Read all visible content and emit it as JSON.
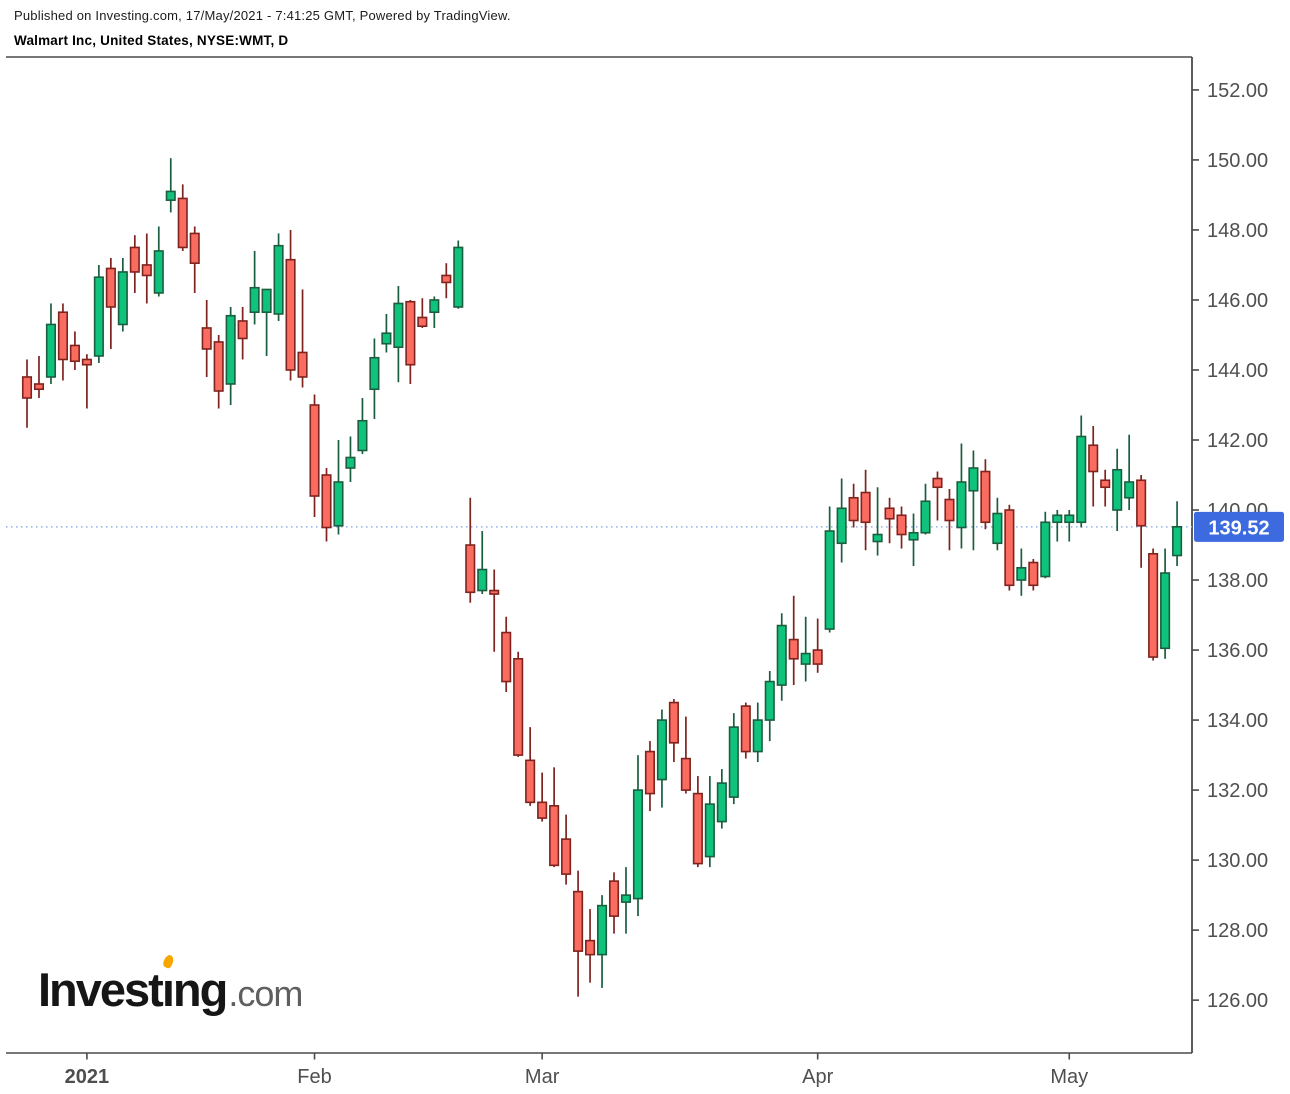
{
  "header": {
    "published_line": "Published on Investing.com, 17/May/2021 - 7:41:25 GMT, Powered by TradingView.",
    "instrument_line": "Walmart Inc, United States, NYSE:WMT, D"
  },
  "logo": {
    "part_invest": "Invest",
    "part_i": "ı",
    "part_ng": "ng",
    "part_suffix": ".com",
    "accent_color": "#f7a600"
  },
  "last_price_badge": {
    "label": "139.52",
    "color": "#3d6bdf",
    "text_color": "#ffffff"
  },
  "chart_data": {
    "type": "candlestick",
    "title": "Walmart Inc, United States, NYSE:WMT, D",
    "symbol": "NYSE:WMT",
    "timeframe": "D",
    "grid": false,
    "ylim": [
      124.49,
      152.94
    ],
    "last_price": 139.52,
    "price_ticks": [
      {
        "value": 152,
        "label": "152.00"
      },
      {
        "value": 150,
        "label": "150.00"
      },
      {
        "value": 148,
        "label": "148.00"
      },
      {
        "value": 146,
        "label": "146.00"
      },
      {
        "value": 144,
        "label": "144.00"
      },
      {
        "value": 142,
        "label": "142.00"
      },
      {
        "value": 140,
        "label": "140.00"
      },
      {
        "value": 138,
        "label": "138.00"
      },
      {
        "value": 136,
        "label": "136.00"
      },
      {
        "value": 134,
        "label": "134.00"
      },
      {
        "value": 132,
        "label": "132.00"
      },
      {
        "value": 130,
        "label": "130.00"
      },
      {
        "value": 128,
        "label": "128.00"
      },
      {
        "value": 126,
        "label": "126.00"
      }
    ],
    "x_ticks": [
      {
        "label": "2021",
        "candle_index": 5,
        "bold": true
      },
      {
        "label": "Feb",
        "candle_index": 24,
        "bold": false
      },
      {
        "label": "Mar",
        "candle_index": 43,
        "bold": false
      },
      {
        "label": "Apr",
        "candle_index": 66,
        "bold": false
      },
      {
        "label": "May",
        "candle_index": 87,
        "bold": false
      }
    ],
    "colors": {
      "up_fill": "#10c37c",
      "up_stroke": "#1b5e3f",
      "down_fill": "#fa6b60",
      "down_stroke": "#7e231e",
      "last_price_line": "#8fb0ea",
      "axis_text": "#4f4f4f",
      "axis_line": "#4a4a4a"
    },
    "columns": [
      "date",
      "open",
      "high",
      "low",
      "close"
    ],
    "candles": [
      [
        "24 Dec",
        143.8,
        144.3,
        142.35,
        143.2
      ],
      [
        "28 Dec",
        143.6,
        144.4,
        143.2,
        143.45
      ],
      [
        "29 Dec",
        143.8,
        145.9,
        143.6,
        145.3
      ],
      [
        "30 Dec",
        145.65,
        145.9,
        143.7,
        144.3
      ],
      [
        "31 Dec",
        144.7,
        145.1,
        144.0,
        144.25
      ],
      [
        "4 Jan",
        144.3,
        144.45,
        142.9,
        144.15
      ],
      [
        "5 Jan",
        144.4,
        147.0,
        144.2,
        146.65
      ],
      [
        "6 Jan",
        146.9,
        147.2,
        144.6,
        145.8
      ],
      [
        "7 Jan",
        145.3,
        147.2,
        145.1,
        146.8
      ],
      [
        "8 Jan",
        147.5,
        147.85,
        146.2,
        146.8
      ],
      [
        "11 Jan",
        147.0,
        147.9,
        145.9,
        146.7
      ],
      [
        "12 Jan",
        146.2,
        148.1,
        146.1,
        147.4
      ],
      [
        "13 Jan",
        148.85,
        150.05,
        148.5,
        149.1
      ],
      [
        "14 Jan",
        148.9,
        149.3,
        147.4,
        147.5
      ],
      [
        "15 Jan",
        147.9,
        148.1,
        146.2,
        147.05
      ],
      [
        "19 Jan",
        145.2,
        146.0,
        143.8,
        144.6
      ],
      [
        "20 Jan",
        144.8,
        145.0,
        142.9,
        143.4
      ],
      [
        "21 Jan",
        143.6,
        145.8,
        143.0,
        145.55
      ],
      [
        "22 Jan",
        145.4,
        145.8,
        144.3,
        144.9
      ],
      [
        "25 Jan",
        145.65,
        147.4,
        145.3,
        146.35
      ],
      [
        "26 Jan",
        145.65,
        146.3,
        144.4,
        146.3
      ],
      [
        "27 Jan",
        145.6,
        147.9,
        145.4,
        147.55
      ],
      [
        "28 Jan",
        147.15,
        148.0,
        143.7,
        144.0
      ],
      [
        "29 Jan",
        144.5,
        146.3,
        143.5,
        143.8
      ],
      [
        "1 Feb",
        143.0,
        143.3,
        139.8,
        140.4
      ],
      [
        "2 Feb",
        141.0,
        141.2,
        139.1,
        139.5
      ],
      [
        "3 Feb",
        139.55,
        142.0,
        139.3,
        140.8
      ],
      [
        "4 Feb",
        141.2,
        142.1,
        140.8,
        141.5
      ],
      [
        "5 Feb",
        141.7,
        143.2,
        141.6,
        142.55
      ],
      [
        "8 Feb",
        143.45,
        144.9,
        142.6,
        144.35
      ],
      [
        "9 Feb",
        144.75,
        145.6,
        144.5,
        145.05
      ],
      [
        "10 Feb",
        144.65,
        146.4,
        143.65,
        145.9
      ],
      [
        "11 Feb",
        145.95,
        146.0,
        143.6,
        144.15
      ],
      [
        "12 Feb",
        145.5,
        146.05,
        145.2,
        145.25
      ],
      [
        "16 Feb",
        145.65,
        146.1,
        145.2,
        146.0
      ],
      [
        "17 Feb",
        146.7,
        147.05,
        146.05,
        146.5
      ],
      [
        "18 Feb",
        145.8,
        147.7,
        145.75,
        147.5
      ],
      [
        "19 Feb",
        139.0,
        140.35,
        137.35,
        137.65
      ],
      [
        "22 Feb",
        137.7,
        139.4,
        137.6,
        138.3
      ],
      [
        "23 Feb",
        137.7,
        138.3,
        135.95,
        137.6
      ],
      [
        "24 Feb",
        136.5,
        136.95,
        134.8,
        135.1
      ],
      [
        "25 Feb",
        135.75,
        135.95,
        132.95,
        133.0
      ],
      [
        "26 Feb",
        132.85,
        133.8,
        131.55,
        131.65
      ],
      [
        "1 Mar",
        131.65,
        132.5,
        131.1,
        131.2
      ],
      [
        "2 Mar",
        131.55,
        132.65,
        129.8,
        129.85
      ],
      [
        "3 Mar",
        130.6,
        131.3,
        129.3,
        129.6
      ],
      [
        "4 Mar",
        129.1,
        129.7,
        126.1,
        127.4
      ],
      [
        "5 Mar",
        127.7,
        128.6,
        126.5,
        127.3
      ],
      [
        "8 Mar",
        127.3,
        129.0,
        126.35,
        128.7
      ],
      [
        "9 Mar",
        129.4,
        129.65,
        127.9,
        128.4
      ],
      [
        "10 Mar",
        128.8,
        129.8,
        127.9,
        129.0
      ],
      [
        "11 Mar",
        128.9,
        133.0,
        128.4,
        132.0
      ],
      [
        "12 Mar",
        133.1,
        133.4,
        131.4,
        131.9
      ],
      [
        "15 Mar",
        132.3,
        134.3,
        131.5,
        134.0
      ],
      [
        "16 Mar",
        134.5,
        134.6,
        132.8,
        133.35
      ],
      [
        "17 Mar",
        132.9,
        134.1,
        131.9,
        132.0
      ],
      [
        "18 Mar",
        131.9,
        132.4,
        129.8,
        129.9
      ],
      [
        "19 Mar",
        130.1,
        132.4,
        129.8,
        131.6
      ],
      [
        "22 Mar",
        131.1,
        132.6,
        130.9,
        132.2
      ],
      [
        "23 Mar",
        131.8,
        134.2,
        131.6,
        133.8
      ],
      [
        "24 Mar",
        134.4,
        134.5,
        132.9,
        133.1
      ],
      [
        "25 Mar",
        133.1,
        134.5,
        132.8,
        134.0
      ],
      [
        "26 Mar",
        134.0,
        135.4,
        133.4,
        135.1
      ],
      [
        "29 Mar",
        135.0,
        137.05,
        134.55,
        136.7
      ],
      [
        "30 Mar",
        136.3,
        137.55,
        135.0,
        135.75
      ],
      [
        "31 Mar",
        135.6,
        136.95,
        135.1,
        135.9
      ],
      [
        "1 Apr",
        136.0,
        136.9,
        135.35,
        135.6
      ],
      [
        "5 Apr",
        136.6,
        140.1,
        136.5,
        139.4
      ],
      [
        "6 Apr",
        139.05,
        140.9,
        138.5,
        140.05
      ],
      [
        "7 Apr",
        140.35,
        140.75,
        139.5,
        139.7
      ],
      [
        "8 Apr",
        140.5,
        141.15,
        138.85,
        139.65
      ],
      [
        "9 Apr",
        139.1,
        140.65,
        138.7,
        139.3
      ],
      [
        "12 Apr",
        140.05,
        140.35,
        139.05,
        139.75
      ],
      [
        "13 Apr",
        139.85,
        140.1,
        138.9,
        139.3
      ],
      [
        "14 Apr",
        139.15,
        139.9,
        138.4,
        139.35
      ],
      [
        "15 Apr",
        139.35,
        140.75,
        139.3,
        140.25
      ],
      [
        "16 Apr",
        140.9,
        141.1,
        139.7,
        140.65
      ],
      [
        "19 Apr",
        140.3,
        140.6,
        138.85,
        139.7
      ],
      [
        "20 Apr",
        139.5,
        141.9,
        138.9,
        140.8
      ],
      [
        "21 Apr",
        140.55,
        141.7,
        138.85,
        141.2
      ],
      [
        "22 Apr",
        141.1,
        141.45,
        139.45,
        139.65
      ],
      [
        "23 Apr",
        139.05,
        140.35,
        138.85,
        139.9
      ],
      [
        "26 Apr",
        140.0,
        140.15,
        137.7,
        137.85
      ],
      [
        "27 Apr",
        138.0,
        138.9,
        137.55,
        138.35
      ],
      [
        "28 Apr",
        138.5,
        138.6,
        137.7,
        137.85
      ],
      [
        "29 Apr",
        138.1,
        139.95,
        138.05,
        139.65
      ],
      [
        "30 Apr",
        139.65,
        140.0,
        139.1,
        139.85
      ],
      [
        "3 May",
        139.65,
        140.0,
        139.1,
        139.85
      ],
      [
        "4 May",
        139.65,
        142.7,
        139.5,
        142.1
      ],
      [
        "5 May",
        141.85,
        142.4,
        140.1,
        141.1
      ],
      [
        "6 May",
        140.85,
        141.15,
        140.1,
        140.65
      ],
      [
        "7 May",
        140.0,
        141.75,
        139.4,
        141.15
      ],
      [
        "10 May",
        140.35,
        142.15,
        140.0,
        140.8
      ],
      [
        "11 May",
        140.85,
        141.0,
        138.35,
        139.55
      ],
      [
        "12 May",
        138.75,
        138.9,
        135.7,
        135.8
      ],
      [
        "13 May",
        136.05,
        138.9,
        135.75,
        138.2
      ],
      [
        "14 May",
        138.7,
        140.25,
        138.4,
        139.52
      ]
    ]
  }
}
